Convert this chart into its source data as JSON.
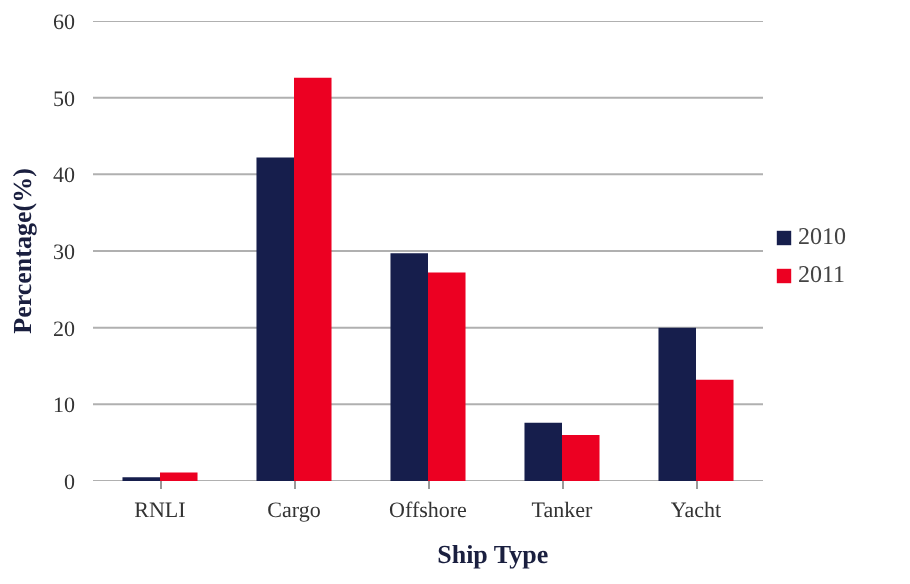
{
  "chart_data": {
    "type": "bar",
    "xlabel": "Ship Type",
    "ylabel": "Percentage(%)",
    "categories": [
      "RNLI",
      "Cargo",
      "Offshore",
      "Tanker",
      "Yacht"
    ],
    "series": [
      {
        "name": "2010",
        "color": "#161e4c",
        "values": [
          0.5,
          42.2,
          29.7,
          7.6,
          20.0
        ]
      },
      {
        "name": "2011",
        "color": "#ec0022",
        "values": [
          1.1,
          52.6,
          27.2,
          6.0,
          13.2
        ]
      }
    ],
    "ylim": [
      0,
      60
    ],
    "yticks": [
      0,
      10,
      20,
      30,
      40,
      50,
      60
    ],
    "grid": "y",
    "legend": "right"
  }
}
